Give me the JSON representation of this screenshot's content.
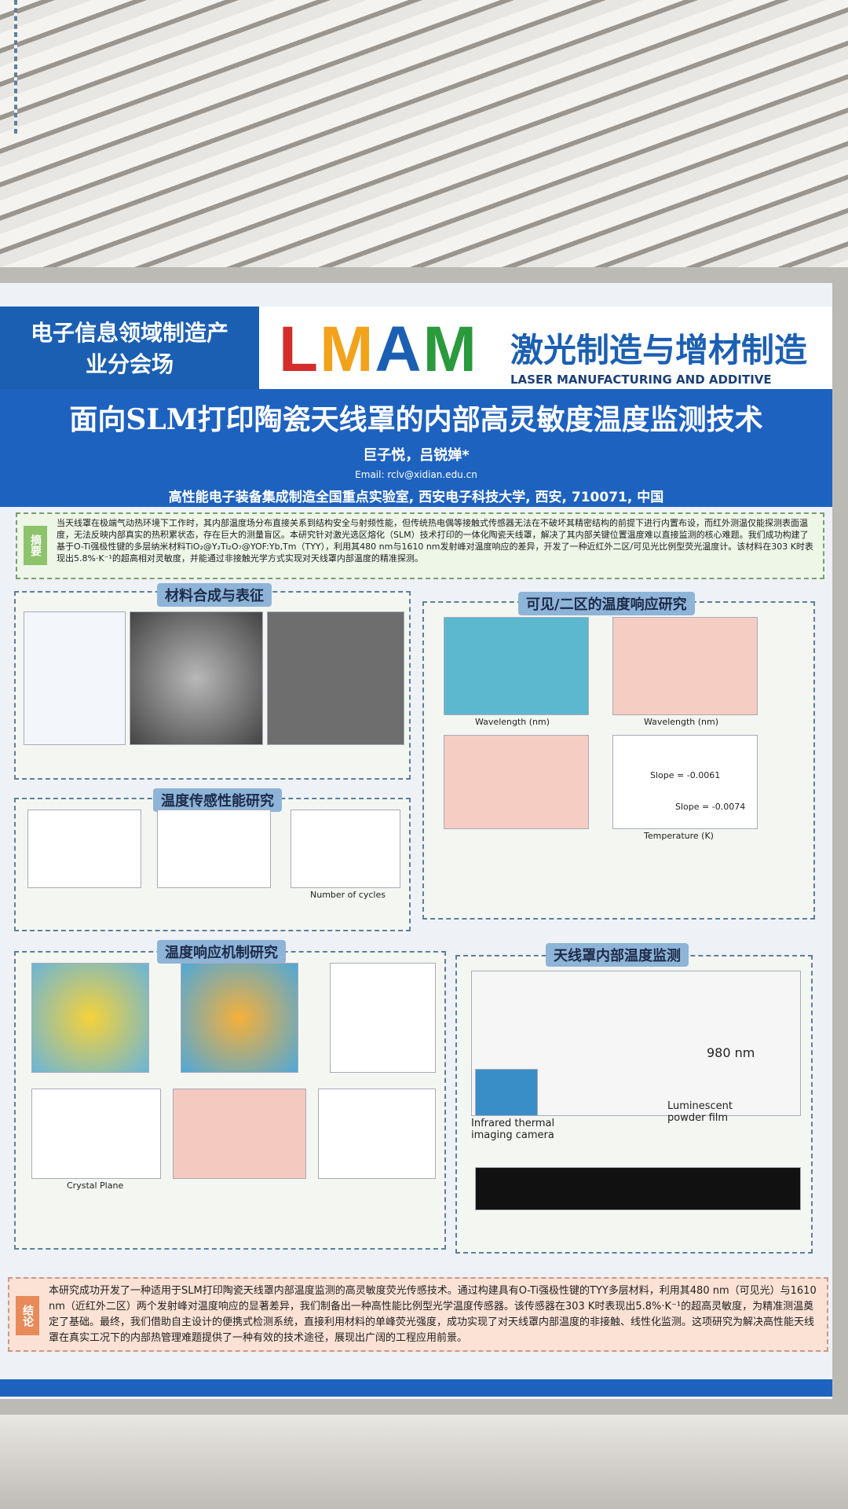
{
  "header": {
    "left_lines": [
      "电子信息领域制造产",
      "业分会场"
    ],
    "logo": [
      "L",
      "M",
      "A",
      "M"
    ],
    "logo_colors": [
      "#d42b2b",
      "#f2a31b",
      "#1b5fb3",
      "#2a9a3c"
    ],
    "right_cn": "激光制造与增材制造",
    "right_en": "LASER MANUFACTURING AND ADDITIVE MANUFACTURING"
  },
  "title": "面向SLM打印陶瓷天线罩的内部高灵敏度温度监测技术",
  "authors": "巨子悦，吕锐婵*",
  "email": "Email: rclv@xidian.edu.cn",
  "affiliation": "高性能电子装备集成制造全国重点实验室, 西安电子科技大学, 西安, 710071, 中国",
  "abstract": {
    "label": "摘要",
    "text": "当天线罩在极端气动热环境下工作时，其内部温度场分布直接关系到结构安全与射频性能，但传统热电偶等接触式传感器无法在不破坏其精密结构的前提下进行内置布设，而红外测温仅能探测表面温度，无法反映内部真实的热积累状态，存在巨大的测量盲区。本研究针对激光选区熔化（SLM）技术打印的一体化陶瓷天线罩，解决了其内部关键位置温度难以直接监测的核心难题。我们成功构建了基于O-Ti强极性键的多层纳米材料TiO₂@Y₂Ti₂O₇@YOF:Yb,Tm（TYY），利用其480 nm与1610 nm发射峰对温度响应的差异，开发了一种近红外二区/可见光比例型荧光温度计。该材料在303 K时表现出5.8%·K⁻¹的超高相对灵敏度，并能通过非接触光学方式实现对天线罩内部温度的精准探测。"
  },
  "sections": {
    "s1": "材料合成与表征",
    "s2": "可见/二区的温度响应研究",
    "s3": "温度传感性能研究",
    "s4": "温度响应机制研究",
    "s5": "天线罩内部温度监测"
  },
  "figure_texts": {
    "wavelength": "Wavelength (nm)",
    "temperature": "Temperature (K)",
    "slope1": "Slope = -0.0061",
    "slope2": "Slope = -0.0074",
    "crystal": "Crystal Plane",
    "laser": "980 nm",
    "film": "Luminescent powder film",
    "camera": "Infrared thermal imaging camera",
    "cycles": "Number of cycles"
  },
  "conclusion": {
    "label": "结论",
    "text": "本研究成功开发了一种适用于SLM打印陶瓷天线罩内部温度监测的高灵敏度荧光传感技术。通过构建具有O-Ti强极性键的TYY多层材料，利用其480 nm（可见光）与1610 nm（近红外二区）两个发射峰对温度响应的显著差异，我们制备出一种高性能比例型光学温度传感器。该传感器在303 K时表现出5.8%·K⁻¹的超高灵敏度，为精准测温奠定了基础。最终，我们借助自主设计的便携式检测系统，直接利用材料的单峰荧光强度，成功实现了对天线罩内部温度的非接触、线性化监测。这项研究为解决高性能天线罩在真实工况下的内部热管理难题提供了一种有效的技术途径，展现出广阔的工程应用前景。"
  }
}
